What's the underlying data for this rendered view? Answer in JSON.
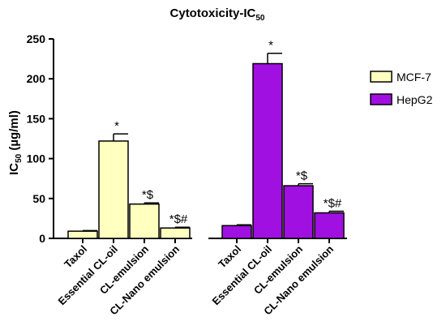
{
  "chart_data": {
    "type": "bar",
    "title": "Cytotoxicity-IC",
    "title_sub": "50",
    "ylabel_main": "IC",
    "ylabel_sub": "50",
    "ylabel_unit": " (µg/ml)",
    "ylim": [
      0,
      250
    ],
    "yticks": [
      0,
      50,
      100,
      150,
      200,
      250
    ],
    "categories": [
      "Taxol",
      "Essential CL-oil",
      "CL-emulsion",
      "CL-Nano emulsion"
    ],
    "legend_position": "right",
    "grid": false,
    "series": [
      {
        "name": "MCF-7",
        "color": "#FFFFC0",
        "values": [
          9,
          122,
          43,
          13
        ],
        "errors": [
          0.8,
          9,
          1.5,
          1
        ],
        "annotations": [
          "",
          "*",
          "*$",
          "*$#"
        ]
      },
      {
        "name": "HepG2",
        "color": "#A010E0",
        "values": [
          16,
          219,
          66,
          32
        ],
        "errors": [
          1,
          13,
          2.5,
          2
        ],
        "annotations": [
          "",
          "*",
          "*$",
          "*$#"
        ]
      }
    ]
  }
}
